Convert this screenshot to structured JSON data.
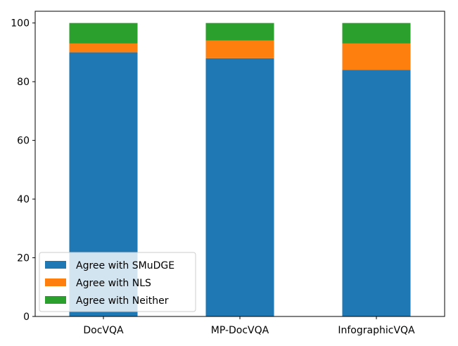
{
  "chart_data": {
    "type": "bar",
    "stacked": true,
    "title": "",
    "xlabel": "",
    "ylabel": "",
    "categories": [
      "DocVQA",
      "MP-DocVQA",
      "InfographicVQA"
    ],
    "series": [
      {
        "name": "Agree with SMuDGE",
        "color": "#1f77b4",
        "values": [
          90,
          88,
          84
        ]
      },
      {
        "name": "Agree with NLS",
        "color": "#ff7f0e",
        "values": [
          3,
          6,
          9
        ]
      },
      {
        "name": "Agree with Neither",
        "color": "#2ca02c",
        "values": [
          7,
          6,
          7
        ]
      }
    ],
    "ylim": [
      0,
      104
    ],
    "yticks": [
      0,
      20,
      40,
      60,
      80,
      100
    ],
    "grid": false,
    "legend_position": "lower-left"
  }
}
